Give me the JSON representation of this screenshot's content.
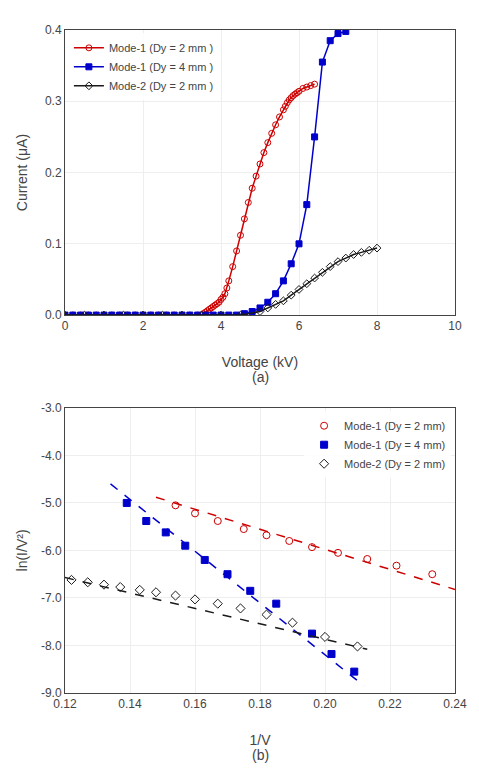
{
  "chart_data": [
    {
      "type": "line",
      "x_label": "Voltage (kV)",
      "y_label": "Current (μA)",
      "xlim": [
        0,
        10
      ],
      "ylim": [
        0,
        0.4
      ],
      "xticks": [
        0,
        2,
        4,
        6,
        8,
        10
      ],
      "yticks": [
        {
          "value": 0,
          "label": "0.0"
        },
        0.1,
        0.2,
        0.3,
        0.4
      ],
      "grid": true,
      "legend": "upper left",
      "annotations": [
        {
          "text": "(a)"
        }
      ],
      "series": [
        {
          "name": "Mode-1 (Dy = 2 mm )",
          "color": "#cc0000",
          "marker": "circle-open",
          "x": [
            0.0,
            0.2,
            0.4,
            0.6,
            0.8,
            1.0,
            1.2,
            1.4,
            1.6,
            1.8,
            2.0,
            2.2,
            2.4,
            2.6,
            2.8,
            3.0,
            3.2,
            3.4,
            3.5,
            3.55,
            3.6,
            3.65,
            3.7,
            3.75,
            3.8,
            3.85,
            3.9,
            3.95,
            4.0,
            4.05,
            4.1,
            4.15,
            4.2,
            4.3,
            4.4,
            4.5,
            4.6,
            4.7,
            4.8,
            4.9,
            5.0,
            5.1,
            5.2,
            5.3,
            5.4,
            5.5,
            5.6,
            5.65,
            5.7,
            5.75,
            5.8,
            5.85,
            5.9,
            5.95,
            6.0,
            6.1,
            6.2,
            6.3,
            6.4
          ],
          "values": [
            0.0,
            0.0,
            0.0,
            0.0,
            0.0,
            0.0,
            0.0,
            0.0,
            0.0,
            0.0,
            0.0,
            0.0,
            0.0,
            0.0,
            0.0,
            0.0,
            0.0,
            0.0,
            0.0,
            0.002,
            0.004,
            0.006,
            0.008,
            0.01,
            0.012,
            0.014,
            0.016,
            0.018,
            0.022,
            0.025,
            0.03,
            0.038,
            0.048,
            0.068,
            0.09,
            0.112,
            0.135,
            0.158,
            0.178,
            0.195,
            0.212,
            0.228,
            0.242,
            0.255,
            0.267,
            0.278,
            0.288,
            0.293,
            0.298,
            0.302,
            0.305,
            0.308,
            0.31,
            0.312,
            0.314,
            0.318,
            0.32,
            0.322,
            0.324
          ]
        },
        {
          "name": "Mode-1 (Dy = 4 mm )",
          "color": "#0000cc",
          "marker": "square",
          "x": [
            0.0,
            0.2,
            0.4,
            0.6,
            0.8,
            1.0,
            1.2,
            1.4,
            1.6,
            1.8,
            2.0,
            2.2,
            2.4,
            2.6,
            2.8,
            3.0,
            3.2,
            3.4,
            3.6,
            3.8,
            4.0,
            4.2,
            4.4,
            4.6,
            4.8,
            5.0,
            5.2,
            5.4,
            5.6,
            5.8,
            6.0,
            6.2,
            6.4,
            6.6,
            6.8,
            7.0,
            7.2
          ],
          "values": [
            0.0,
            0.0,
            0.0,
            0.0,
            0.0,
            0.0,
            0.0,
            0.0,
            0.0,
            0.0,
            0.0,
            0.0,
            0.0,
            0.0,
            0.0,
            0.0,
            0.0,
            0.0,
            0.0,
            0.0,
            0.0,
            0.0,
            0.0,
            0.002,
            0.005,
            0.01,
            0.018,
            0.03,
            0.048,
            0.072,
            0.1,
            0.155,
            0.25,
            0.355,
            0.385,
            0.395,
            0.398
          ]
        },
        {
          "name": "Mode-2 (Dy = 2 mm )",
          "color": "#1a1a1a",
          "marker": "diamond-open",
          "x": [
            0.0,
            0.5,
            1.0,
            1.5,
            2.0,
            2.5,
            3.0,
            3.5,
            4.0,
            4.5,
            5.0,
            5.2,
            5.4,
            5.6,
            5.8,
            6.0,
            6.2,
            6.4,
            6.6,
            6.8,
            7.0,
            7.2,
            7.4,
            7.6,
            7.8,
            8.0
          ],
          "values": [
            0.0,
            0.0,
            0.0,
            0.0,
            0.0,
            0.0,
            0.0,
            0.0,
            0.0,
            0.0,
            0.005,
            0.01,
            0.015,
            0.02,
            0.028,
            0.036,
            0.044,
            0.052,
            0.06,
            0.068,
            0.075,
            0.08,
            0.085,
            0.088,
            0.091,
            0.094
          ]
        }
      ]
    },
    {
      "type": "scatter",
      "x_label": "1/V",
      "y_label": "ln(I/V²)",
      "xlim": [
        0.12,
        0.24
      ],
      "ylim": [
        -9.0,
        -3.0
      ],
      "xticks": [
        0.12,
        0.14,
        0.16,
        0.18,
        {
          "value": 0.2,
          "label": "0.20"
        },
        0.22,
        0.24
      ],
      "yticks": [
        {
          "value": -9,
          "label": "-9.0"
        },
        {
          "value": -8,
          "label": "-8.0"
        },
        {
          "value": -7,
          "label": "-7.0"
        },
        {
          "value": -6,
          "label": "-6.0"
        },
        {
          "value": -5,
          "label": "-5.0"
        },
        {
          "value": -4,
          "label": "-4.0"
        },
        {
          "value": -3,
          "label": "-3.0"
        }
      ],
      "grid": true,
      "legend": "upper right",
      "annotations": [
        {
          "text": "(b)"
        }
      ],
      "series": [
        {
          "name": "Mode-1 (Dy = 2 mm)",
          "type": "scatter",
          "color": "#cc0000",
          "marker": "circle-open",
          "x": [
            0.154,
            0.16,
            0.167,
            0.175,
            0.182,
            0.189,
            0.196,
            0.204,
            0.213,
            0.222,
            0.233
          ],
          "values": [
            -5.05,
            -5.22,
            -5.38,
            -5.55,
            -5.68,
            -5.8,
            -5.93,
            -6.05,
            -6.18,
            -6.32,
            -6.5
          ]
        },
        {
          "type": "line",
          "color": "#cc0000",
          "line_style": "dashed",
          "x": [
            0.148,
            0.24
          ],
          "values": [
            -4.88,
            -6.82
          ]
        },
        {
          "name": "Mode-1 (Dy = 4 mm)",
          "type": "scatter",
          "color": "#0000cc",
          "marker": "square",
          "x": [
            0.139,
            0.145,
            0.151,
            0.157,
            0.163,
            0.17,
            0.177,
            0.185,
            0.196,
            0.202,
            0.209
          ],
          "values": [
            -5.0,
            -5.38,
            -5.62,
            -5.9,
            -6.2,
            -6.5,
            -6.85,
            -7.12,
            -7.75,
            -8.18,
            -8.55
          ]
        },
        {
          "type": "line",
          "color": "#0000cc",
          "line_style": "dashed",
          "x": [
            0.134,
            0.212
          ],
          "values": [
            -4.6,
            -8.85
          ]
        },
        {
          "name": "Mode-2 (Dy = 2 mm)",
          "type": "scatter",
          "color": "#1a1a1a",
          "marker": "diamond-open",
          "x": [
            0.122,
            0.127,
            0.132,
            0.137,
            0.143,
            0.148,
            0.154,
            0.16,
            0.167,
            0.174,
            0.182,
            0.19,
            0.2,
            0.21
          ],
          "values": [
            -6.62,
            -6.67,
            -6.72,
            -6.77,
            -6.83,
            -6.88,
            -6.95,
            -7.03,
            -7.12,
            -7.22,
            -7.35,
            -7.52,
            -7.82,
            -8.02
          ]
        },
        {
          "type": "line",
          "color": "#1a1a1a",
          "line_style": "dashed",
          "x": [
            0.12,
            0.213
          ],
          "values": [
            -6.57,
            -8.08
          ]
        }
      ]
    }
  ]
}
